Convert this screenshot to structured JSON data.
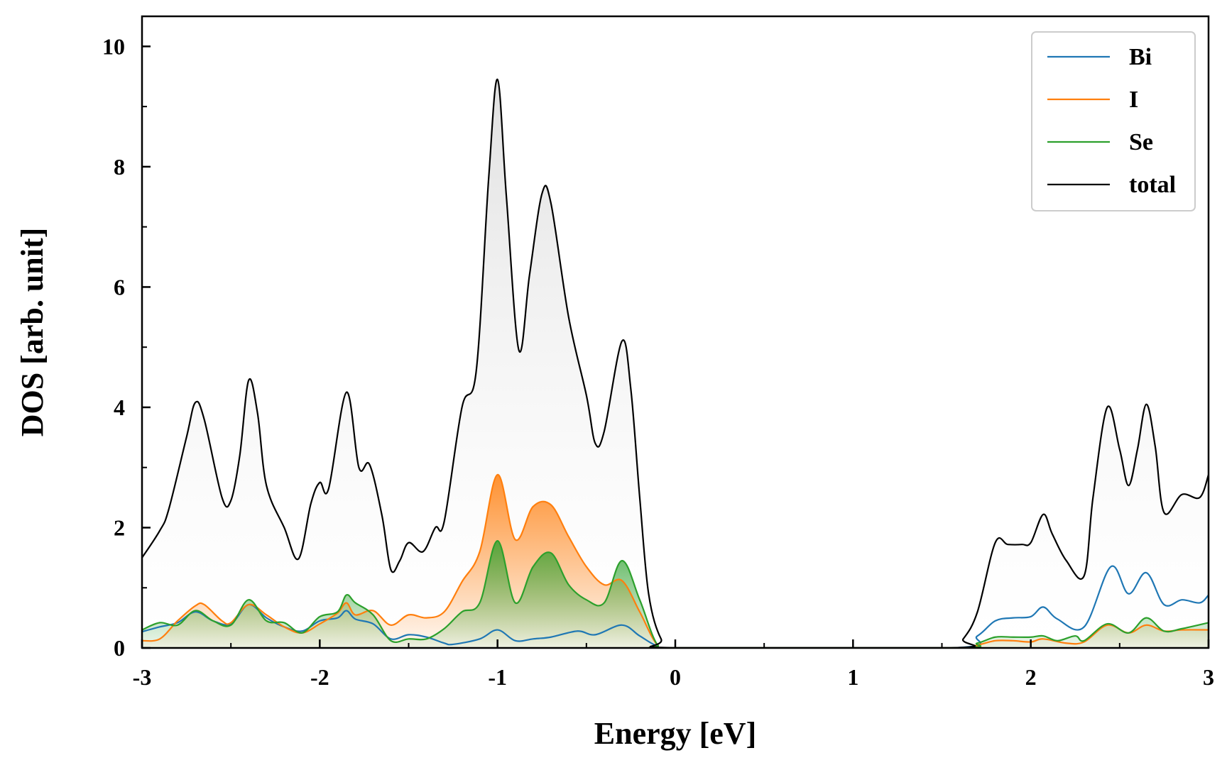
{
  "chart_data": {
    "type": "line",
    "title": "",
    "xlabel": "Energy [eV]",
    "ylabel": "DOS [arb. unit]",
    "xlim": [
      -3,
      3
    ],
    "ylim": [
      0,
      10.5
    ],
    "x_major_ticks": [
      -3,
      -2,
      -1,
      0,
      1,
      2,
      3
    ],
    "x_tick_labels": [
      "-3",
      "-2",
      "-1",
      "0",
      "1",
      "2",
      "3"
    ],
    "x_minor_step": 0.5,
    "y_major_ticks": [
      0,
      2,
      4,
      6,
      8,
      10
    ],
    "y_tick_labels": [
      "0",
      "2",
      "4",
      "6",
      "8",
      "10"
    ],
    "y_minor_step": 1,
    "grid": false,
    "legend_position": "top-right",
    "series": [
      {
        "name": "Bi",
        "color": "#1f77b4",
        "fill": false,
        "points": [
          [
            -3.0,
            0.27
          ],
          [
            -2.9,
            0.35
          ],
          [
            -2.8,
            0.42
          ],
          [
            -2.7,
            0.6
          ],
          [
            -2.6,
            0.45
          ],
          [
            -2.5,
            0.4
          ],
          [
            -2.4,
            0.72
          ],
          [
            -2.3,
            0.5
          ],
          [
            -2.2,
            0.35
          ],
          [
            -2.1,
            0.28
          ],
          [
            -2.0,
            0.45
          ],
          [
            -1.9,
            0.5
          ],
          [
            -1.85,
            0.62
          ],
          [
            -1.8,
            0.48
          ],
          [
            -1.7,
            0.4
          ],
          [
            -1.6,
            0.15
          ],
          [
            -1.5,
            0.22
          ],
          [
            -1.4,
            0.18
          ],
          [
            -1.3,
            0.08
          ],
          [
            -1.25,
            0.06
          ],
          [
            -1.1,
            0.15
          ],
          [
            -1.0,
            0.3
          ],
          [
            -0.9,
            0.12
          ],
          [
            -0.8,
            0.15
          ],
          [
            -0.7,
            0.18
          ],
          [
            -0.55,
            0.28
          ],
          [
            -0.45,
            0.22
          ],
          [
            -0.3,
            0.38
          ],
          [
            -0.2,
            0.2
          ],
          [
            -0.1,
            0.03
          ],
          [
            0.0,
            0.0
          ],
          [
            1.55,
            0.0
          ],
          [
            1.7,
            0.2
          ],
          [
            1.8,
            0.45
          ],
          [
            1.9,
            0.5
          ],
          [
            2.0,
            0.52
          ],
          [
            2.07,
            0.68
          ],
          [
            2.15,
            0.48
          ],
          [
            2.3,
            0.35
          ],
          [
            2.45,
            1.35
          ],
          [
            2.55,
            0.9
          ],
          [
            2.65,
            1.25
          ],
          [
            2.75,
            0.72
          ],
          [
            2.85,
            0.8
          ],
          [
            2.95,
            0.75
          ],
          [
            3.0,
            0.88
          ]
        ]
      },
      {
        "name": "I",
        "color": "#ff7f0e",
        "fill": true,
        "points": [
          [
            -3.0,
            0.12
          ],
          [
            -2.9,
            0.15
          ],
          [
            -2.8,
            0.45
          ],
          [
            -2.7,
            0.7
          ],
          [
            -2.65,
            0.72
          ],
          [
            -2.55,
            0.45
          ],
          [
            -2.5,
            0.42
          ],
          [
            -2.4,
            0.72
          ],
          [
            -2.3,
            0.55
          ],
          [
            -2.2,
            0.35
          ],
          [
            -2.1,
            0.25
          ],
          [
            -2.0,
            0.4
          ],
          [
            -1.9,
            0.58
          ],
          [
            -1.85,
            0.75
          ],
          [
            -1.8,
            0.55
          ],
          [
            -1.7,
            0.62
          ],
          [
            -1.6,
            0.38
          ],
          [
            -1.5,
            0.55
          ],
          [
            -1.4,
            0.5
          ],
          [
            -1.3,
            0.6
          ],
          [
            -1.2,
            1.1
          ],
          [
            -1.1,
            1.6
          ],
          [
            -1.0,
            2.88
          ],
          [
            -0.9,
            1.8
          ],
          [
            -0.8,
            2.35
          ],
          [
            -0.7,
            2.38
          ],
          [
            -0.6,
            1.85
          ],
          [
            -0.5,
            1.35
          ],
          [
            -0.4,
            1.05
          ],
          [
            -0.3,
            1.12
          ],
          [
            -0.2,
            0.6
          ],
          [
            -0.1,
            0.05
          ],
          [
            0.0,
            0.0
          ],
          [
            1.55,
            0.0
          ],
          [
            1.7,
            0.05
          ],
          [
            1.8,
            0.12
          ],
          [
            1.9,
            0.12
          ],
          [
            2.0,
            0.1
          ],
          [
            2.07,
            0.15
          ],
          [
            2.2,
            0.08
          ],
          [
            2.3,
            0.1
          ],
          [
            2.43,
            0.38
          ],
          [
            2.55,
            0.25
          ],
          [
            2.65,
            0.38
          ],
          [
            2.75,
            0.28
          ],
          [
            2.85,
            0.3
          ],
          [
            3.0,
            0.3
          ]
        ]
      },
      {
        "name": "Se",
        "color": "#2ca02c",
        "fill": true,
        "points": [
          [
            -3.0,
            0.3
          ],
          [
            -2.9,
            0.42
          ],
          [
            -2.8,
            0.38
          ],
          [
            -2.7,
            0.62
          ],
          [
            -2.6,
            0.45
          ],
          [
            -2.5,
            0.38
          ],
          [
            -2.4,
            0.8
          ],
          [
            -2.3,
            0.45
          ],
          [
            -2.2,
            0.42
          ],
          [
            -2.1,
            0.25
          ],
          [
            -2.0,
            0.52
          ],
          [
            -1.9,
            0.6
          ],
          [
            -1.85,
            0.88
          ],
          [
            -1.8,
            0.75
          ],
          [
            -1.7,
            0.55
          ],
          [
            -1.6,
            0.12
          ],
          [
            -1.5,
            0.15
          ],
          [
            -1.4,
            0.15
          ],
          [
            -1.3,
            0.32
          ],
          [
            -1.2,
            0.6
          ],
          [
            -1.1,
            0.75
          ],
          [
            -1.0,
            1.78
          ],
          [
            -0.9,
            0.75
          ],
          [
            -0.8,
            1.35
          ],
          [
            -0.7,
            1.58
          ],
          [
            -0.6,
            1.05
          ],
          [
            -0.5,
            0.8
          ],
          [
            -0.4,
            0.75
          ],
          [
            -0.3,
            1.45
          ],
          [
            -0.2,
            0.8
          ],
          [
            -0.1,
            0.05
          ],
          [
            0.0,
            0.0
          ],
          [
            1.55,
            0.0
          ],
          [
            1.7,
            0.08
          ],
          [
            1.8,
            0.18
          ],
          [
            1.9,
            0.18
          ],
          [
            2.0,
            0.18
          ],
          [
            2.07,
            0.2
          ],
          [
            2.15,
            0.12
          ],
          [
            2.25,
            0.2
          ],
          [
            2.3,
            0.12
          ],
          [
            2.43,
            0.4
          ],
          [
            2.55,
            0.25
          ],
          [
            2.65,
            0.5
          ],
          [
            2.75,
            0.28
          ],
          [
            2.85,
            0.32
          ],
          [
            3.0,
            0.42
          ]
        ]
      },
      {
        "name": "total",
        "color": "#000000",
        "fill": true,
        "points": [
          [
            -3.0,
            1.5
          ],
          [
            -2.9,
            1.95
          ],
          [
            -2.85,
            2.3
          ],
          [
            -2.75,
            3.5
          ],
          [
            -2.7,
            4.08
          ],
          [
            -2.65,
            3.8
          ],
          [
            -2.55,
            2.5
          ],
          [
            -2.5,
            2.45
          ],
          [
            -2.45,
            3.2
          ],
          [
            -2.4,
            4.45
          ],
          [
            -2.35,
            3.9
          ],
          [
            -2.3,
            2.7
          ],
          [
            -2.2,
            2.0
          ],
          [
            -2.12,
            1.48
          ],
          [
            -2.05,
            2.4
          ],
          [
            -2.0,
            2.75
          ],
          [
            -1.95,
            2.65
          ],
          [
            -1.85,
            4.25
          ],
          [
            -1.78,
            3.0
          ],
          [
            -1.72,
            3.05
          ],
          [
            -1.65,
            2.2
          ],
          [
            -1.6,
            1.3
          ],
          [
            -1.55,
            1.45
          ],
          [
            -1.5,
            1.75
          ],
          [
            -1.42,
            1.6
          ],
          [
            -1.35,
            2.0
          ],
          [
            -1.3,
            2.1
          ],
          [
            -1.2,
            4.0
          ],
          [
            -1.12,
            4.6
          ],
          [
            -1.05,
            7.8
          ],
          [
            -1.0,
            9.45
          ],
          [
            -0.95,
            7.5
          ],
          [
            -0.88,
            4.95
          ],
          [
            -0.82,
            6.2
          ],
          [
            -0.75,
            7.55
          ],
          [
            -0.7,
            7.4
          ],
          [
            -0.6,
            5.5
          ],
          [
            -0.5,
            4.2
          ],
          [
            -0.45,
            3.4
          ],
          [
            -0.4,
            3.6
          ],
          [
            -0.3,
            5.1
          ],
          [
            -0.25,
            4.3
          ],
          [
            -0.2,
            2.5
          ],
          [
            -0.15,
            0.9
          ],
          [
            -0.08,
            0.15
          ],
          [
            0.0,
            0.0
          ],
          [
            1.55,
            0.0
          ],
          [
            1.62,
            0.15
          ],
          [
            1.7,
            0.6
          ],
          [
            1.8,
            1.75
          ],
          [
            1.87,
            1.72
          ],
          [
            1.95,
            1.72
          ],
          [
            2.0,
            1.75
          ],
          [
            2.07,
            2.22
          ],
          [
            2.12,
            1.9
          ],
          [
            2.2,
            1.45
          ],
          [
            2.3,
            1.2
          ],
          [
            2.35,
            2.5
          ],
          [
            2.43,
            4.0
          ],
          [
            2.5,
            3.3
          ],
          [
            2.55,
            2.7
          ],
          [
            2.6,
            3.3
          ],
          [
            2.65,
            4.05
          ],
          [
            2.7,
            3.35
          ],
          [
            2.75,
            2.25
          ],
          [
            2.85,
            2.55
          ],
          [
            2.95,
            2.5
          ],
          [
            3.0,
            2.88
          ]
        ]
      }
    ]
  }
}
